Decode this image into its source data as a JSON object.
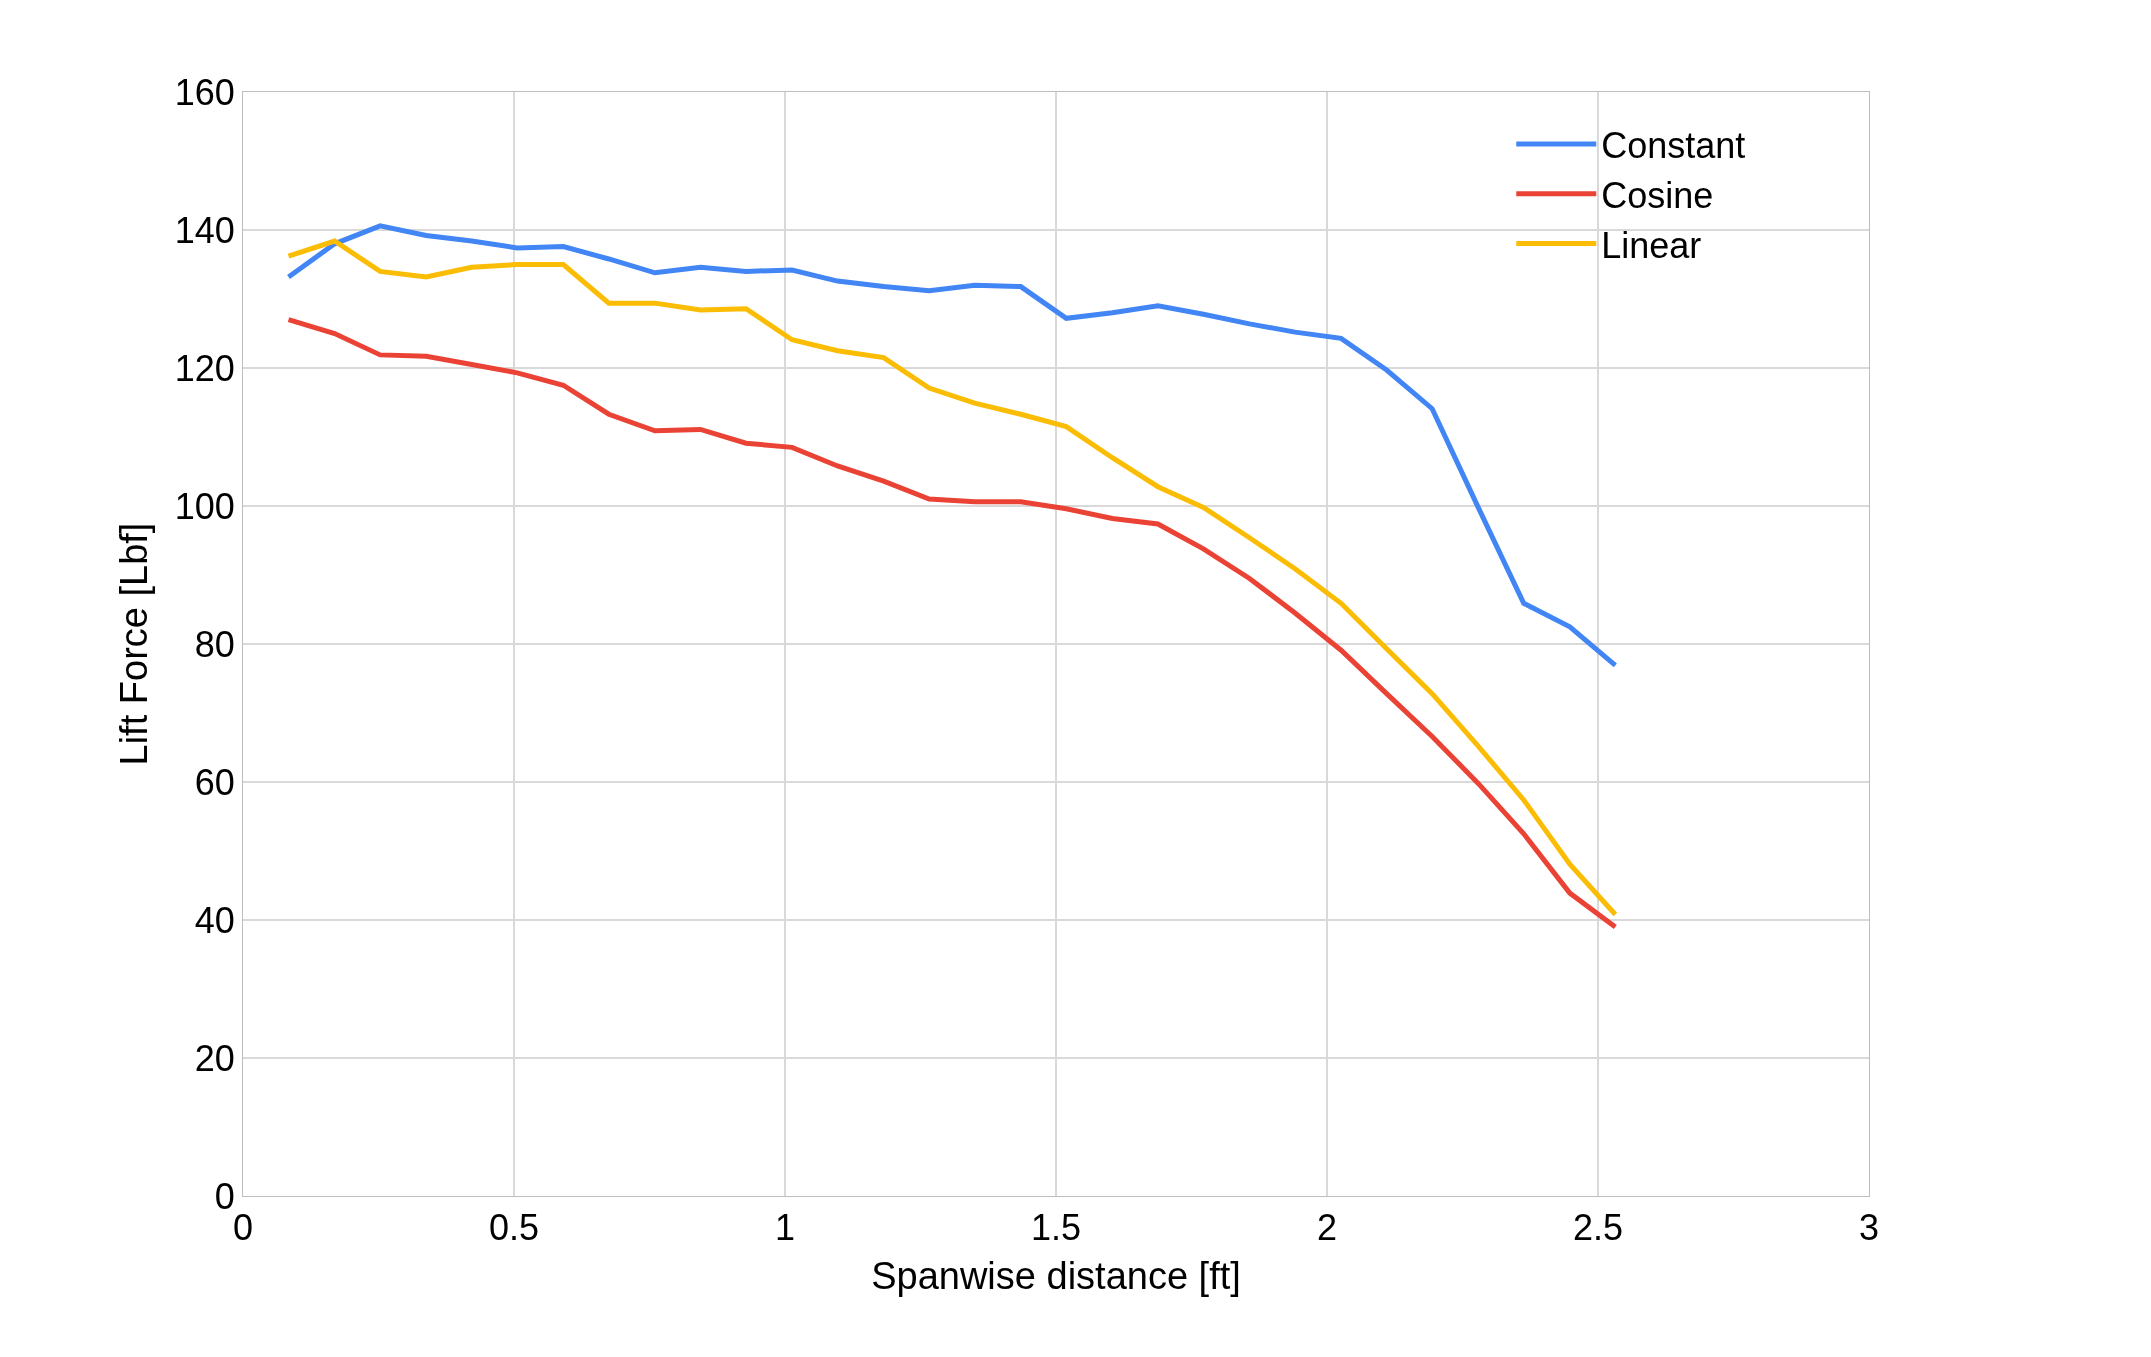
{
  "chart_data": {
    "type": "line",
    "xlabel": "Spanwise distance [ft]",
    "ylabel": "Lift Force [Lbf]",
    "x": [
      0.084,
      0.169,
      0.253,
      0.338,
      0.422,
      0.506,
      0.591,
      0.675,
      0.76,
      0.844,
      0.928,
      1.013,
      1.097,
      1.182,
      1.266,
      1.35,
      1.435,
      1.519,
      1.604,
      1.688,
      1.772,
      1.857,
      1.941,
      2.026,
      2.11,
      2.194,
      2.279,
      2.363,
      2.448,
      2.532
    ],
    "series": [
      {
        "name": "Constant",
        "color": "#4285f4",
        "values": [
          133.2,
          138,
          140.6,
          139.2,
          138.4,
          137.4,
          137.6,
          135.8,
          133.8,
          134.6,
          134,
          134.2,
          132.6,
          131.8,
          131.2,
          132,
          131.8,
          127.2,
          128,
          129,
          127.8,
          126.4,
          125.2,
          124.3,
          119.7,
          114.1,
          99.8,
          85.9,
          82.5,
          76.9
        ]
      },
      {
        "name": "Cosine",
        "color": "#ea4335",
        "values": [
          127,
          125,
          121.9,
          121.7,
          120.5,
          119.3,
          117.5,
          113.3,
          110.9,
          111.1,
          109.1,
          108.5,
          105.8,
          103.6,
          101,
          100.6,
          100.6,
          99.6,
          98.2,
          97.4,
          93.8,
          89.5,
          84.5,
          79.1,
          72.8,
          66.6,
          59.8,
          52.5,
          43.9,
          39
        ]
      },
      {
        "name": "Linear",
        "color": "#fbbc04",
        "values": [
          136.2,
          138.4,
          134,
          133.2,
          134.6,
          135,
          135,
          129.4,
          129.4,
          128.4,
          128.6,
          124.1,
          122.5,
          121.5,
          117.1,
          114.9,
          113.3,
          111.5,
          107,
          102.8,
          99.8,
          95.4,
          90.9,
          85.9,
          79.3,
          72.8,
          65.2,
          57.4,
          48.1,
          40.8
        ]
      }
    ],
    "xlim": [
      0,
      3
    ],
    "xticks": [
      0,
      0.5,
      1,
      1.5,
      2,
      2.5,
      3
    ],
    "ylim": [
      0,
      160
    ],
    "yticks": [
      0,
      20,
      40,
      60,
      80,
      100,
      120,
      140,
      160
    ],
    "grid": true,
    "legend": "top right",
    "marker": "none",
    "line_style": "solid"
  }
}
